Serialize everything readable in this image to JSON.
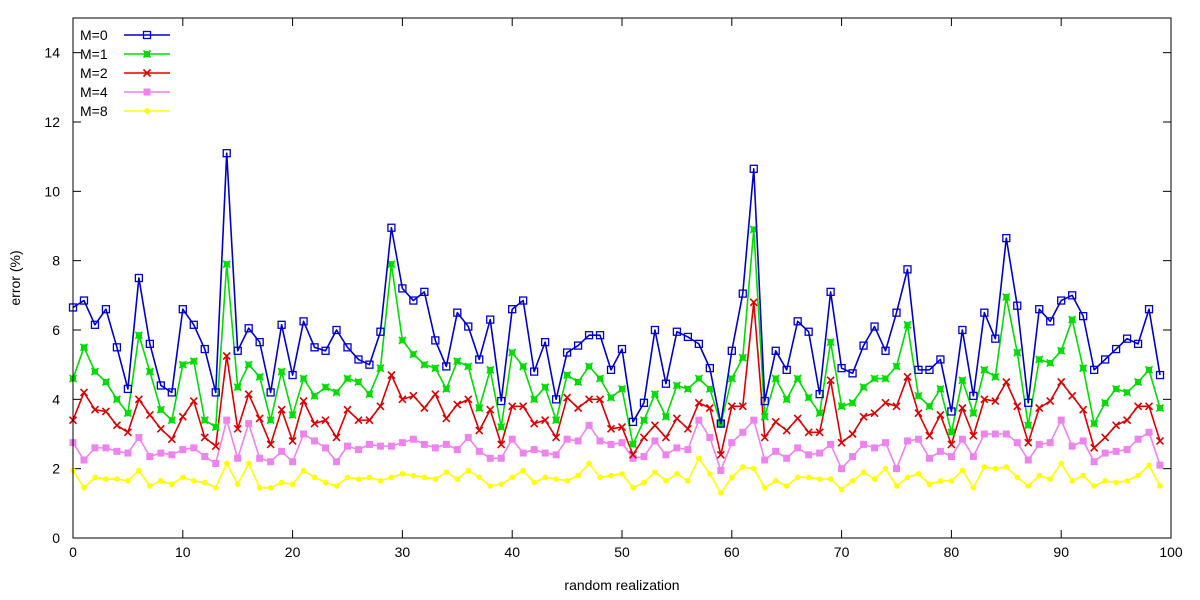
{
  "chart_data": {
    "type": "line",
    "xlabel": "random realization",
    "ylabel": "error (%)",
    "xlim": [
      0,
      100
    ],
    "ylim": [
      0,
      15
    ],
    "xticks": [
      0,
      10,
      20,
      30,
      40,
      50,
      60,
      70,
      80,
      90,
      100
    ],
    "yticks": [
      0,
      2,
      4,
      6,
      8,
      10,
      12,
      14
    ],
    "legend_position": "top-left",
    "x": [
      0,
      1,
      2,
      3,
      4,
      5,
      6,
      7,
      8,
      9,
      10,
      11,
      12,
      13,
      14,
      15,
      16,
      17,
      18,
      19,
      20,
      21,
      22,
      23,
      24,
      25,
      26,
      27,
      28,
      29,
      30,
      31,
      32,
      33,
      34,
      35,
      36,
      37,
      38,
      39,
      40,
      41,
      42,
      43,
      44,
      45,
      46,
      47,
      48,
      49,
      50,
      51,
      52,
      53,
      54,
      55,
      56,
      57,
      58,
      59,
      60,
      61,
      62,
      63,
      64,
      65,
      66,
      67,
      68,
      69,
      70,
      71,
      72,
      73,
      74,
      75,
      76,
      77,
      78,
      79,
      80,
      81,
      82,
      83,
      84,
      85,
      86,
      87,
      88,
      89,
      90,
      91,
      92,
      93,
      94,
      95,
      96,
      97,
      98,
      99
    ],
    "series": [
      {
        "name": "M=0",
        "color": "#0000cc",
        "marker": "open-square",
        "values": [
          6.65,
          6.85,
          6.15,
          6.6,
          5.5,
          4.3,
          7.5,
          5.6,
          4.4,
          4.2,
          6.6,
          6.15,
          5.45,
          4.2,
          11.1,
          5.4,
          6.05,
          5.65,
          4.2,
          6.15,
          4.7,
          6.25,
          5.5,
          5.4,
          6.0,
          5.5,
          5.15,
          5.0,
          5.95,
          8.95,
          7.2,
          6.85,
          7.1,
          5.7,
          4.95,
          6.5,
          6.1,
          5.15,
          6.3,
          3.95,
          6.6,
          6.85,
          4.8,
          5.65,
          4.0,
          5.35,
          5.55,
          5.85,
          5.85,
          4.85,
          5.45,
          3.35,
          3.9,
          6.0,
          4.45,
          5.95,
          5.8,
          5.6,
          4.9,
          3.3,
          5.4,
          7.05,
          10.65,
          3.95,
          5.4,
          4.85,
          6.25,
          5.95,
          4.15,
          7.1,
          4.9,
          4.75,
          5.55,
          6.1,
          5.4,
          6.5,
          7.75,
          4.85,
          4.85,
          5.15,
          3.65,
          6.0,
          4.1,
          6.5,
          5.75,
          8.65,
          6.7,
          3.9,
          6.6,
          6.25,
          6.85,
          7.0,
          6.4,
          4.85,
          5.15,
          5.45,
          5.75,
          5.6,
          6.6,
          4.7
        ]
      },
      {
        "name": "M=1",
        "color": "#00dd00",
        "marker": "filled-square-x",
        "values": [
          4.6,
          5.5,
          4.8,
          4.5,
          4.0,
          3.6,
          5.85,
          4.8,
          3.7,
          3.4,
          5.0,
          5.1,
          3.4,
          3.2,
          7.9,
          4.35,
          5.0,
          4.65,
          3.4,
          4.8,
          3.55,
          4.6,
          4.1,
          4.35,
          4.2,
          4.6,
          4.5,
          4.15,
          4.9,
          7.9,
          5.7,
          5.3,
          5.0,
          4.9,
          4.3,
          5.1,
          4.95,
          3.75,
          4.85,
          3.2,
          5.35,
          4.95,
          4.0,
          4.35,
          3.4,
          4.7,
          4.5,
          4.95,
          4.6,
          4.05,
          4.3,
          2.7,
          3.4,
          4.15,
          3.5,
          4.4,
          4.3,
          4.6,
          4.3,
          3.3,
          4.6,
          5.2,
          8.9,
          3.5,
          4.6,
          4.0,
          4.6,
          4.05,
          3.6,
          5.65,
          3.8,
          3.9,
          4.35,
          4.6,
          4.6,
          4.95,
          6.15,
          4.1,
          3.8,
          4.3,
          3.05,
          4.55,
          3.6,
          4.85,
          4.65,
          6.95,
          5.35,
          3.25,
          5.15,
          5.05,
          5.4,
          6.3,
          4.9,
          3.3,
          3.9,
          4.3,
          4.2,
          4.5,
          4.85,
          3.75
        ]
      },
      {
        "name": "M=2",
        "color": "#dd0000",
        "marker": "x",
        "values": [
          3.4,
          4.2,
          3.7,
          3.65,
          3.25,
          3.05,
          4.0,
          3.55,
          3.15,
          2.85,
          3.5,
          3.95,
          2.9,
          2.65,
          5.25,
          3.15,
          4.15,
          3.45,
          2.7,
          3.7,
          2.8,
          3.95,
          3.3,
          3.4,
          2.9,
          3.7,
          3.4,
          3.4,
          3.8,
          4.7,
          4.0,
          4.1,
          3.75,
          4.15,
          3.45,
          3.85,
          4.0,
          3.1,
          3.7,
          2.7,
          3.8,
          3.8,
          3.3,
          3.4,
          2.9,
          4.05,
          3.75,
          4.0,
          4.0,
          3.15,
          3.2,
          2.4,
          2.9,
          3.25,
          2.9,
          3.45,
          3.15,
          3.9,
          3.75,
          2.4,
          3.8,
          3.8,
          6.8,
          2.9,
          3.35,
          3.1,
          3.45,
          3.05,
          3.05,
          4.55,
          2.75,
          3.0,
          3.5,
          3.6,
          3.9,
          3.8,
          4.65,
          3.6,
          2.95,
          3.55,
          2.7,
          3.75,
          2.95,
          4.0,
          3.95,
          4.5,
          3.8,
          2.75,
          3.75,
          3.95,
          4.5,
          4.1,
          3.7,
          2.6,
          2.9,
          3.25,
          3.4,
          3.8,
          3.8,
          2.8
        ]
      },
      {
        "name": "M=4",
        "color": "#ee82ee",
        "marker": "filled-square",
        "values": [
          2.75,
          2.25,
          2.6,
          2.6,
          2.5,
          2.45,
          2.9,
          2.35,
          2.45,
          2.4,
          2.55,
          2.6,
          2.35,
          2.15,
          3.4,
          2.3,
          3.3,
          2.3,
          2.2,
          2.5,
          2.2,
          3.0,
          2.8,
          2.6,
          2.2,
          2.65,
          2.55,
          2.7,
          2.65,
          2.65,
          2.75,
          2.85,
          2.7,
          2.6,
          2.7,
          2.55,
          2.9,
          2.5,
          2.3,
          2.3,
          2.85,
          2.45,
          2.55,
          2.45,
          2.4,
          2.85,
          2.8,
          3.25,
          2.8,
          2.7,
          2.75,
          2.3,
          2.35,
          2.8,
          2.4,
          2.6,
          2.55,
          3.4,
          2.9,
          1.95,
          2.75,
          3.05,
          3.4,
          2.25,
          2.5,
          2.3,
          2.6,
          2.4,
          2.45,
          2.7,
          2.0,
          2.35,
          2.7,
          2.6,
          2.75,
          2.0,
          2.8,
          2.85,
          2.3,
          2.5,
          2.35,
          2.85,
          2.35,
          3.0,
          3.0,
          3.0,
          2.75,
          2.25,
          2.7,
          2.75,
          3.4,
          2.65,
          2.8,
          2.2,
          2.45,
          2.5,
          2.55,
          2.85,
          3.05,
          2.1
        ]
      },
      {
        "name": "M=8",
        "color": "#ffff00",
        "marker": "filled-circle",
        "values": [
          1.95,
          1.45,
          1.75,
          1.7,
          1.7,
          1.65,
          1.95,
          1.5,
          1.65,
          1.55,
          1.75,
          1.65,
          1.6,
          1.45,
          2.15,
          1.55,
          2.15,
          1.45,
          1.45,
          1.6,
          1.55,
          1.95,
          1.75,
          1.6,
          1.5,
          1.75,
          1.7,
          1.75,
          1.65,
          1.75,
          1.85,
          1.8,
          1.75,
          1.7,
          1.9,
          1.7,
          1.95,
          1.75,
          1.5,
          1.55,
          1.75,
          1.95,
          1.6,
          1.75,
          1.7,
          1.65,
          1.8,
          2.15,
          1.75,
          1.8,
          1.85,
          1.45,
          1.6,
          1.9,
          1.65,
          1.85,
          1.65,
          2.3,
          1.85,
          1.3,
          1.75,
          2.05,
          2.0,
          1.45,
          1.65,
          1.5,
          1.75,
          1.75,
          1.7,
          1.7,
          1.4,
          1.65,
          1.9,
          1.7,
          2.0,
          1.5,
          1.75,
          1.85,
          1.55,
          1.65,
          1.65,
          1.95,
          1.45,
          2.05,
          2.0,
          2.05,
          1.75,
          1.5,
          1.8,
          1.7,
          2.15,
          1.65,
          1.8,
          1.5,
          1.65,
          1.6,
          1.65,
          1.8,
          2.1,
          1.5
        ]
      }
    ]
  }
}
